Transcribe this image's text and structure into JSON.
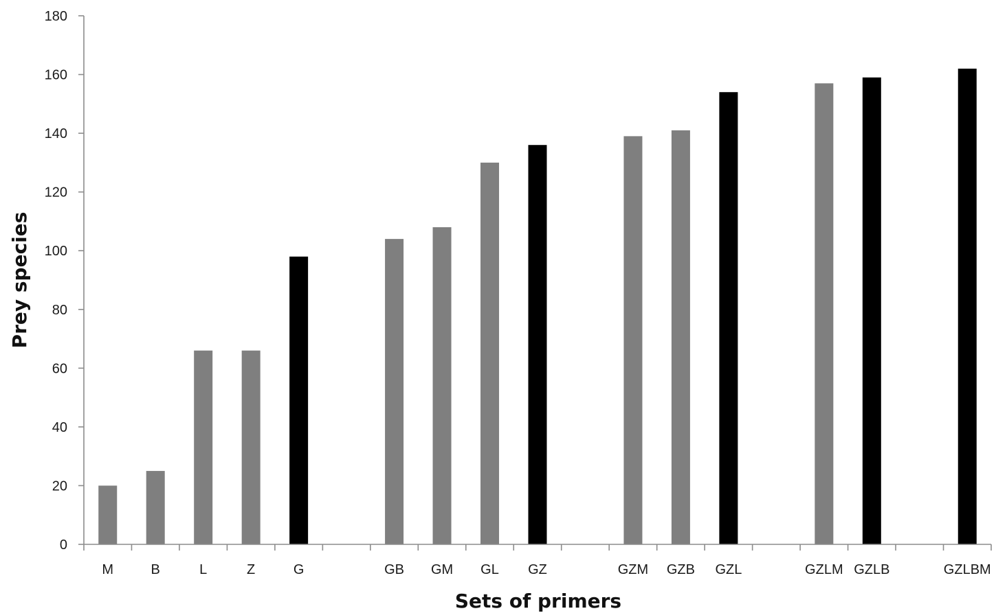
{
  "chart_data": {
    "type": "bar",
    "title": "",
    "xlabel": "Sets of primers",
    "ylabel": "Prey species",
    "ylim": [
      0,
      180
    ],
    "yticks": [
      0,
      20,
      40,
      60,
      80,
      100,
      120,
      140,
      160,
      180
    ],
    "grid": false,
    "legend": "none",
    "colors": {
      "single": "#7f7f7f",
      "best": "#000000"
    },
    "categories": [
      "M",
      "B",
      "L",
      "Z",
      "G",
      "",
      "GB",
      "GM",
      "GL",
      "GZ",
      "",
      "GZM",
      "GZB",
      "GZL",
      "",
      "GZLM",
      "GZLB",
      "",
      "GZLBM"
    ],
    "values": [
      20,
      25,
      66,
      66,
      98,
      null,
      104,
      108,
      130,
      136,
      null,
      139,
      141,
      154,
      null,
      157,
      159,
      null,
      162
    ],
    "highlight": [
      false,
      false,
      false,
      false,
      true,
      false,
      false,
      false,
      false,
      true,
      false,
      false,
      false,
      true,
      false,
      false,
      true,
      false,
      true
    ]
  }
}
